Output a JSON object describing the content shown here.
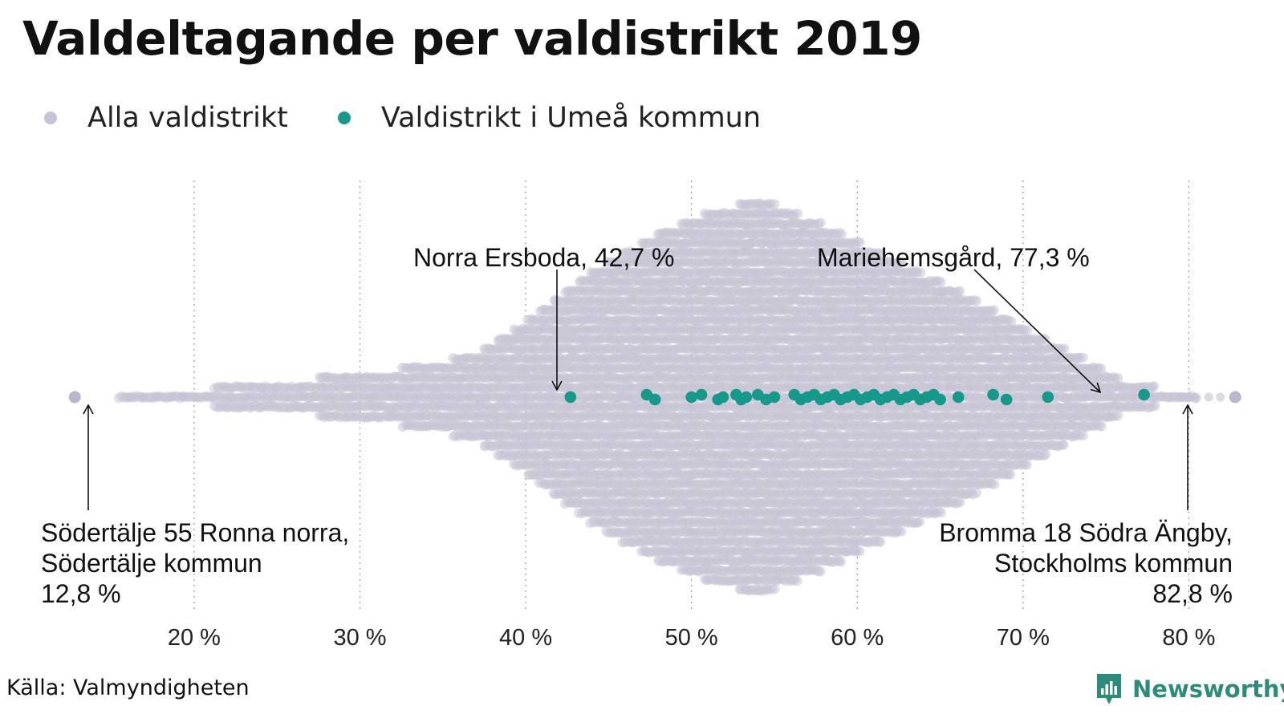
{
  "title": "Valdeltagande per valdistrikt 2019",
  "legend": [
    {
      "label": "Alla valdistrikt",
      "color": "#c5c3d4"
    },
    {
      "label": "Valdistrikt i Umeå kommun",
      "color": "#16988a"
    }
  ],
  "source": "Källa: Valmyndigheten",
  "brand": "Newsworthy",
  "chart_data": {
    "type": "scatter",
    "subtype": "beeswarm",
    "title": "Valdeltagande per valdistrikt 2019",
    "xlim": [
      11,
      87
    ],
    "x_ticks": [
      {
        "value": 20,
        "label": "20 %"
      },
      {
        "value": 30,
        "label": "30 %"
      },
      {
        "value": 40,
        "label": "40 %"
      },
      {
        "value": 50,
        "label": "50 %"
      },
      {
        "value": 60,
        "label": "60 %"
      },
      {
        "value": 70,
        "label": "70 %"
      },
      {
        "value": 80,
        "label": "80 %"
      }
    ],
    "grid": "vertical dotted",
    "legend_position": "top-left",
    "series": [
      {
        "name": "Alla valdistrikt",
        "color": "#c5c3d4",
        "distribution": "beeswarm around mode ≈ 54 %, range 12,8 %–82,8 %",
        "extremes": [
          12.8,
          82.8
        ]
      },
      {
        "name": "Valdistrikt i Umeå kommun",
        "color": "#16988a",
        "values": [
          42.7,
          47.3,
          47.8,
          50.0,
          50.6,
          51.6,
          51.9,
          52.7,
          53.0,
          53.3,
          54.0,
          54.5,
          55.0,
          56.2,
          56.6,
          57.0,
          57.4,
          57.8,
          58.2,
          58.6,
          59.0,
          59.4,
          59.8,
          60.2,
          60.6,
          61.0,
          61.4,
          61.8,
          62.2,
          62.6,
          63.0,
          63.4,
          63.8,
          64.2,
          64.6,
          65.0,
          66.1,
          68.2,
          69.0,
          71.5,
          77.3
        ]
      }
    ],
    "annotations": [
      {
        "lines": [
          "Norra Ersboda, 42,7 %"
        ],
        "x": 42.7,
        "series": "Valdistrikt i Umeå kommun"
      },
      {
        "lines": [
          "Mariehemsgård, 77,3 %"
        ],
        "x": 77.3,
        "series": "Valdistrikt i Umeå kommun"
      },
      {
        "lines": [
          "Södertälje 55 Ronna norra,",
          "Södertälje kommun",
          "12,8 %"
        ],
        "x": 12.8,
        "series": "Alla valdistrikt"
      },
      {
        "lines": [
          "Bromma 18 Södra Ängby,",
          "Stockholms kommun",
          "82,8 %"
        ],
        "x": 82.8,
        "series": "Alla valdistrikt"
      }
    ]
  }
}
